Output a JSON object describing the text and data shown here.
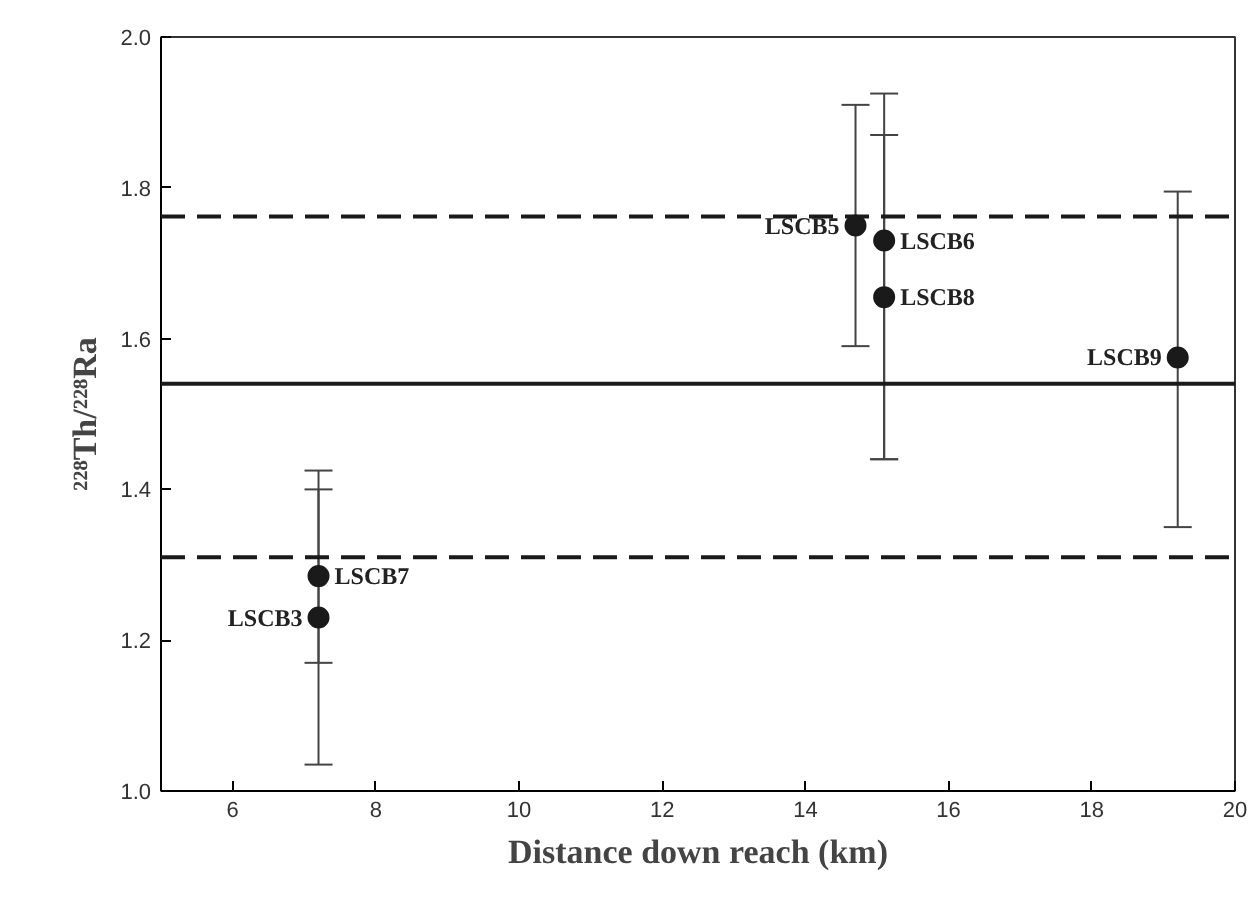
{
  "chart_data": {
    "type": "scatter",
    "xlabel": "Distance down reach (km)",
    "ylabel": "²²⁸Th/²²⁸Ra",
    "x": [
      7.2,
      7.2,
      14.7,
      15.1,
      15.1,
      19.2
    ],
    "series": [
      {
        "color": "#1a1a1a",
        "values": [
          1.23,
          1.285,
          1.75,
          1.73,
          1.655,
          1.575
        ],
        "errors": [
          [
            1.035,
            1.4
          ],
          [
            1.17,
            1.425
          ],
          [
            1.59,
            1.91
          ],
          [
            1.44,
            1.925
          ],
          [
            1.44,
            1.87
          ],
          [
            1.35,
            1.795
          ]
        ]
      }
    ],
    "marker": "circle",
    "xlim": [
      5,
      20
    ],
    "xticks": [
      6,
      8,
      10,
      12,
      14,
      16,
      18,
      20
    ],
    "ylim": [
      1.0,
      2.0
    ],
    "yticks": [
      {
        "value": 1.0,
        "label": "1.0"
      },
      1.2,
      1.4,
      1.6,
      1.8,
      {
        "value": 2.0,
        "label": "2.0"
      }
    ],
    "grid": false,
    "ref_lines": [
      {
        "axis": "y",
        "value": 1.762,
        "line_style": "dashed",
        "color": "#1a1a1a"
      },
      {
        "axis": "y",
        "value": 1.54,
        "line_style": "solid",
        "color": "#1a1a1a"
      },
      {
        "axis": "y",
        "value": 1.31,
        "line_style": "dashed",
        "color": "#1a1a1a"
      }
    ],
    "annotations": [
      {
        "text": "LSCB3",
        "x": 7.2,
        "y": 1.23
      },
      {
        "text": "LSCB7",
        "x": 7.2,
        "y": 1.285
      },
      {
        "text": "LSCB5",
        "x": 14.7,
        "y": 1.75
      },
      {
        "text": "LSCB6",
        "x": 15.1,
        "y": 1.73
      },
      {
        "text": "LSCB8",
        "x": 15.1,
        "y": 1.655
      },
      {
        "text": "LSCB9",
        "x": 19.2,
        "y": 1.575
      }
    ]
  }
}
